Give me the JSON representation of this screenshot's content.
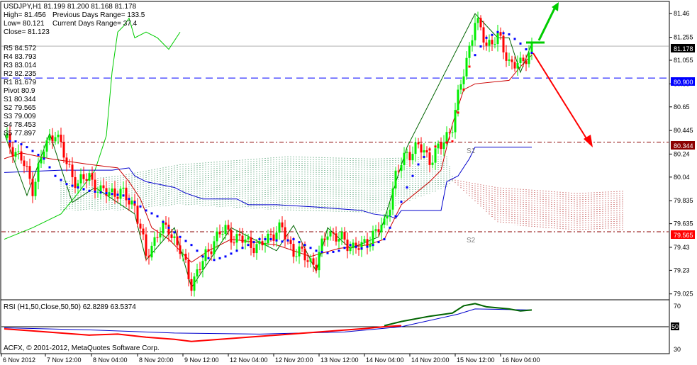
{
  "header": {
    "symbol_line": "USDJPY,H1  81.199 81.200 81.168 81.178",
    "high": "High= 81.456",
    "prev_range": "Previous Days Range= 133.5",
    "low": "Low= 80.121",
    "curr_range": "Current Days Range= 37.4",
    "close": "Close= 81.123"
  },
  "pivots": [
    {
      "label": "R5 84.572"
    },
    {
      "label": "R4 83.793"
    },
    {
      "label": "R3 83.014"
    },
    {
      "label": "R2 82.235"
    },
    {
      "label": "R1 81.679"
    },
    {
      "label": "Pivot 80.9"
    },
    {
      "label": "S1 80.344"
    },
    {
      "label": "S2 79.565"
    },
    {
      "label": "S3 79.009"
    },
    {
      "label": "S4 78.453"
    },
    {
      "label": "S5 77.897"
    }
  ],
  "markers": {
    "s1": "S1",
    "s2": "S2"
  },
  "price_tags": {
    "current": "81.178",
    "pivot": "80.900",
    "s1": "80.344",
    "s2": "79.565"
  },
  "rsi_panel": {
    "label": "RSI (H1,50,Close,50,50) 62.8289 63.5374",
    "axis_ticks": [
      "70",
      "50",
      "30"
    ]
  },
  "copyright": "ACFX, © 2001-2012, MetaQuotes Software Corp.",
  "chart_data": {
    "type": "candlestick",
    "y_ticks": [
      81.46,
      81.255,
      81.055,
      80.85,
      80.65,
      80.445,
      80.24,
      80.04,
      79.835,
      79.635,
      79.43,
      79.23,
      79.025
    ],
    "ylim": [
      78.98,
      81.56
    ],
    "x_ticks": [
      "6 Nov 2012",
      "7 Nov 12:00",
      "8 Nov 04:00",
      "8 Nov 20:00",
      "9 Nov 12:00",
      "12 Nov 04:00",
      "12 Nov 20:00",
      "13 Nov 12:00",
      "14 Nov 04:00",
      "14 Nov 20:00",
      "15 Nov 12:00",
      "16 Nov 04:00"
    ],
    "levels": {
      "pivot": 80.9,
      "s1": 80.344,
      "s2": 79.565,
      "current": 81.178
    },
    "close_path": [
      [
        0,
        80.38
      ],
      [
        6,
        80.2
      ],
      [
        10,
        79.95
      ],
      [
        14,
        80.28
      ],
      [
        18,
        80.45
      ],
      [
        22,
        80.15
      ],
      [
        26,
        79.98
      ],
      [
        30,
        80.05
      ],
      [
        34,
        79.9
      ],
      [
        38,
        79.92
      ],
      [
        42,
        79.88
      ],
      [
        46,
        79.8
      ],
      [
        50,
        79.35
      ],
      [
        54,
        79.55
      ],
      [
        58,
        79.6
      ],
      [
        62,
        79.4
      ],
      [
        66,
        79.12
      ],
      [
        70,
        79.3
      ],
      [
        74,
        79.5
      ],
      [
        78,
        79.58
      ],
      [
        82,
        79.5
      ],
      [
        86,
        79.48
      ],
      [
        90,
        79.42
      ],
      [
        94,
        79.55
      ],
      [
        98,
        79.58
      ],
      [
        102,
        79.4
      ],
      [
        106,
        79.35
      ],
      [
        110,
        79.28
      ],
      [
        114,
        79.58
      ],
      [
        118,
        79.5
      ],
      [
        122,
        79.45
      ],
      [
        126,
        79.42
      ],
      [
        130,
        79.55
      ],
      [
        134,
        79.62
      ],
      [
        138,
        80.05
      ],
      [
        142,
        80.25
      ],
      [
        146,
        80.3
      ],
      [
        150,
        80.2
      ],
      [
        154,
        80.3
      ],
      [
        158,
        80.5
      ],
      [
        162,
        80.95
      ],
      [
        166,
        81.4
      ],
      [
        170,
        81.2
      ],
      [
        174,
        81.25
      ],
      [
        178,
        81.05
      ],
      [
        182,
        81.0
      ],
      [
        186,
        81.18
      ]
    ],
    "zigzag": [
      [
        0,
        80.42
      ],
      [
        8,
        79.88
      ],
      [
        16,
        80.42
      ],
      [
        24,
        79.82
      ],
      [
        32,
        79.95
      ],
      [
        46,
        79.72
      ],
      [
        50,
        79.32
      ],
      [
        60,
        79.6
      ],
      [
        66,
        79.08
      ],
      [
        80,
        79.6
      ],
      [
        96,
        79.4
      ],
      [
        102,
        79.62
      ],
      [
        110,
        79.22
      ],
      [
        114,
        79.6
      ],
      [
        122,
        79.42
      ],
      [
        132,
        79.52
      ],
      [
        142,
        80.3
      ],
      [
        166,
        81.46
      ],
      [
        174,
        81.25
      ],
      [
        178,
        81.25
      ],
      [
        182,
        80.95
      ],
      [
        186,
        81.2
      ]
    ],
    "sar_points": [
      [
        4,
        80.35
      ],
      [
        8,
        80.3
      ],
      [
        14,
        80.2
      ],
      [
        18,
        80.05
      ],
      [
        22,
        79.98
      ],
      [
        26,
        79.95
      ],
      [
        30,
        79.92
      ],
      [
        36,
        79.9
      ],
      [
        42,
        79.88
      ],
      [
        46,
        79.82
      ],
      [
        50,
        79.75
      ],
      [
        54,
        79.7
      ],
      [
        58,
        79.6
      ],
      [
        62,
        79.52
      ],
      [
        66,
        79.45
      ],
      [
        70,
        79.35
      ],
      [
        74,
        79.32
      ],
      [
        78,
        79.35
      ],
      [
        82,
        79.4
      ],
      [
        86,
        79.45
      ],
      [
        90,
        79.5
      ],
      [
        94,
        79.5
      ],
      [
        98,
        79.48
      ],
      [
        102,
        79.5
      ],
      [
        106,
        79.45
      ],
      [
        110,
        79.4
      ],
      [
        114,
        79.38
      ],
      [
        118,
        79.4
      ],
      [
        122,
        79.45
      ],
      [
        126,
        79.42
      ],
      [
        130,
        79.45
      ],
      [
        134,
        79.5
      ],
      [
        138,
        79.7
      ],
      [
        142,
        79.95
      ],
      [
        146,
        80.15
      ],
      [
        150,
        80.28
      ],
      [
        154,
        80.33
      ],
      [
        158,
        80.35
      ],
      [
        160,
        80.6
      ],
      [
        162,
        80.8
      ],
      [
        164,
        81.0
      ],
      [
        166,
        81.1
      ],
      [
        170,
        81.25
      ],
      [
        174,
        81.3
      ],
      [
        178,
        81.28
      ],
      [
        182,
        81.2
      ],
      [
        184,
        81.15
      ],
      [
        186,
        81.12
      ]
    ],
    "blue_line": [
      [
        0,
        80.08
      ],
      [
        20,
        80.1
      ],
      [
        38,
        80.1
      ],
      [
        44,
        80.12
      ],
      [
        46,
        80.05
      ],
      [
        50,
        80.0
      ],
      [
        60,
        79.95
      ],
      [
        64,
        79.9
      ],
      [
        70,
        79.85
      ],
      [
        82,
        79.85
      ],
      [
        86,
        79.8
      ],
      [
        96,
        79.8
      ],
      [
        110,
        79.78
      ],
      [
        126,
        79.75
      ],
      [
        130,
        79.72
      ],
      [
        136,
        79.7
      ],
      [
        138,
        79.68
      ],
      [
        140,
        79.75
      ],
      [
        154,
        79.75
      ],
      [
        156,
        80.0
      ],
      [
        160,
        80.05
      ],
      [
        164,
        80.2
      ],
      [
        166,
        80.3
      ],
      [
        186,
        80.3
      ]
    ],
    "red_line": [
      [
        0,
        80.2
      ],
      [
        6,
        80.25
      ],
      [
        16,
        80.2
      ],
      [
        30,
        80.15
      ],
      [
        40,
        80.12
      ],
      [
        44,
        80.0
      ],
      [
        48,
        79.85
      ],
      [
        52,
        79.6
      ],
      [
        58,
        79.5
      ],
      [
        66,
        79.3
      ],
      [
        72,
        79.4
      ],
      [
        80,
        79.5
      ],
      [
        96,
        79.45
      ],
      [
        108,
        79.35
      ],
      [
        118,
        79.42
      ],
      [
        128,
        79.45
      ],
      [
        134,
        79.5
      ],
      [
        140,
        79.8
      ],
      [
        150,
        80.0
      ],
      [
        154,
        80.1
      ],
      [
        158,
        80.5
      ],
      [
        162,
        80.8
      ],
      [
        166,
        80.85
      ],
      [
        178,
        80.88
      ],
      [
        182,
        81.0
      ],
      [
        186,
        81.1
      ]
    ],
    "green_line": [
      [
        0,
        79.5
      ],
      [
        10,
        79.6
      ],
      [
        20,
        79.72
      ],
      [
        26,
        79.9
      ],
      [
        32,
        80.1
      ],
      [
        36,
        80.4
      ],
      [
        38,
        80.95
      ],
      [
        40,
        81.3
      ],
      [
        42,
        81.35
      ],
      [
        44,
        81.42
      ],
      [
        46,
        81.25
      ],
      [
        50,
        81.3
      ],
      [
        54,
        81.25
      ],
      [
        58,
        81.15
      ],
      [
        62,
        81.3
      ]
    ],
    "cloud_green": [
      [
        20,
        79.75,
        80.0
      ],
      [
        40,
        79.75,
        80.05
      ],
      [
        62,
        79.8,
        80.15
      ],
      [
        100,
        79.75,
        80.22
      ],
      [
        130,
        79.72,
        80.2
      ],
      [
        156,
        79.95,
        80.22
      ],
      [
        158,
        80.0,
        80.05
      ]
    ],
    "cloud_red": [
      [
        158,
        80.0,
        80.02
      ],
      [
        174,
        79.65,
        79.95
      ],
      [
        186,
        79.6,
        79.93
      ],
      [
        202,
        79.58,
        79.9
      ],
      [
        218,
        79.58,
        79.92
      ]
    ],
    "rsi_ylim": [
      25,
      75
    ],
    "rsi_red": [
      [
        0,
        48
      ],
      [
        10,
        46
      ],
      [
        20,
        44
      ],
      [
        30,
        42
      ],
      [
        40,
        43
      ],
      [
        50,
        40
      ],
      [
        60,
        38
      ],
      [
        66,
        36
      ],
      [
        76,
        38
      ],
      [
        86,
        40
      ],
      [
        96,
        42
      ],
      [
        106,
        44
      ],
      [
        116,
        46
      ],
      [
        126,
        48
      ],
      [
        134,
        50
      ],
      [
        140,
        51
      ]
    ],
    "rsi_green": [
      [
        134,
        51
      ],
      [
        140,
        55
      ],
      [
        150,
        60
      ],
      [
        158,
        63
      ],
      [
        162,
        70
      ],
      [
        166,
        72
      ],
      [
        170,
        69
      ],
      [
        174,
        68
      ],
      [
        178,
        67
      ],
      [
        182,
        65
      ],
      [
        186,
        66
      ]
    ],
    "rsi_blue": [
      [
        0,
        49
      ],
      [
        30,
        47
      ],
      [
        60,
        44
      ],
      [
        90,
        43
      ],
      [
        120,
        45
      ],
      [
        140,
        50
      ],
      [
        160,
        62
      ],
      [
        166,
        67
      ],
      [
        186,
        66
      ]
    ]
  }
}
